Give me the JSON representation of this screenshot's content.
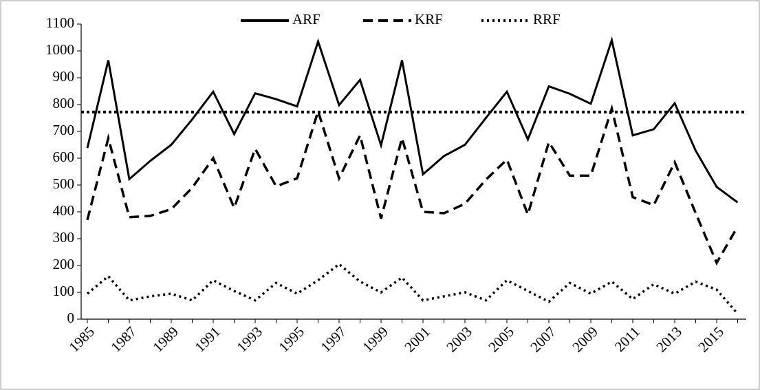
{
  "chart_data": {
    "type": "line",
    "categories": [
      "1985",
      null,
      "1987",
      null,
      "1989",
      null,
      "1991",
      null,
      "1993",
      null,
      "1995",
      null,
      "1997",
      null,
      "1999",
      null,
      "2001",
      null,
      "2003",
      null,
      "2005",
      null,
      "2007",
      null,
      "2009",
      null,
      "2011",
      null,
      "2013",
      null,
      "2015",
      null
    ],
    "series": [
      {
        "name": "ARF",
        "color": "#000000",
        "dash": "solid",
        "values": [
          638,
          965,
          522,
          590,
          650,
          745,
          848,
          690,
          842,
          820,
          793,
          1035,
          798,
          892,
          648,
          965,
          540,
          608,
          650,
          750,
          848,
          670,
          868,
          840,
          803,
          1040,
          685,
          708,
          805,
          628,
          493,
          435
        ]
      },
      {
        "name": "KRF",
        "color": "#000000",
        "dash": "dashed",
        "values": [
          370,
          675,
          380,
          385,
          410,
          490,
          600,
          415,
          635,
          495,
          525,
          775,
          525,
          685,
          375,
          675,
          400,
          395,
          430,
          520,
          595,
          390,
          660,
          535,
          535,
          785,
          455,
          425,
          585,
          395,
          210,
          345
        ]
      },
      {
        "name": "RRF",
        "color": "#000000",
        "dash": "dotted",
        "values": [
          95,
          160,
          70,
          85,
          95,
          70,
          145,
          105,
          70,
          135,
          95,
          145,
          205,
          140,
          100,
          155,
          70,
          85,
          100,
          70,
          145,
          105,
          65,
          135,
          95,
          140,
          75,
          130,
          95,
          140,
          110,
          20
        ]
      }
    ],
    "reference_line": 772,
    "ylim": [
      0,
      1100
    ],
    "yticks": [
      0,
      100,
      200,
      300,
      400,
      500,
      600,
      700,
      800,
      900,
      1000,
      1100
    ],
    "legend": "top"
  }
}
